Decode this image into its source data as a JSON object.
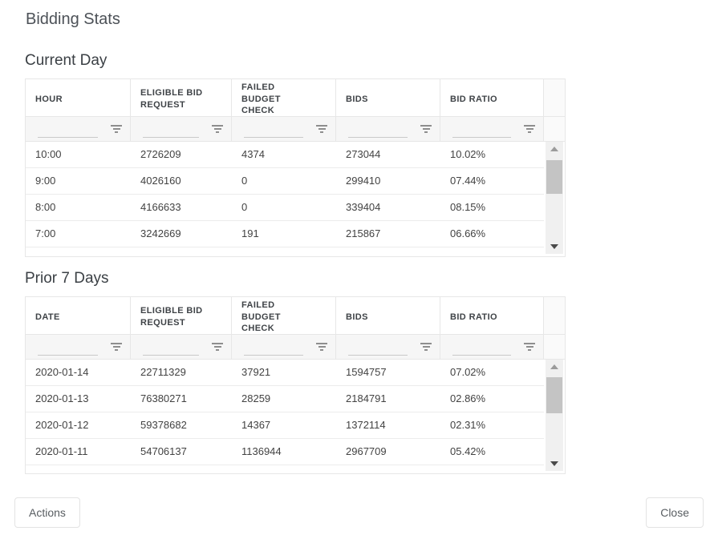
{
  "dialog": {
    "title": "Bidding Stats"
  },
  "tables": [
    {
      "id": "current-day",
      "heading": "Current Day",
      "columns": [
        "HOUR",
        "ELIGIBLE BID REQUEST",
        "FAILED BUDGET CHECK",
        "BIDS",
        "BID RATIO"
      ],
      "filter_value": "",
      "rows": [
        [
          "10:00",
          "2726209",
          "4374",
          "273044",
          "10.02%"
        ],
        [
          "9:00",
          "4026160",
          "0",
          "299410",
          "07.44%"
        ],
        [
          "8:00",
          "4166633",
          "0",
          "339404",
          "08.15%"
        ],
        [
          "7:00",
          "3242669",
          "191",
          "215867",
          "06.66%"
        ]
      ]
    },
    {
      "id": "prior-7-days",
      "heading": "Prior 7 Days",
      "columns": [
        "DATE",
        "ELIGIBLE BID REQUEST",
        "FAILED BUDGET CHECK",
        "BIDS",
        "BID RATIO"
      ],
      "filter_value": "",
      "rows": [
        [
          "2020-01-14",
          "22711329",
          "37921",
          "1594757",
          "07.02%"
        ],
        [
          "2020-01-13",
          "76380271",
          "28259",
          "2184791",
          "02.86%"
        ],
        [
          "2020-01-12",
          "59378682",
          "14367",
          "1372114",
          "02.31%"
        ],
        [
          "2020-01-11",
          "54706137",
          "1136944",
          "2967709",
          "05.42%"
        ]
      ]
    }
  ],
  "footer": {
    "actions_label": "Actions",
    "close_label": "Close"
  },
  "icons": {
    "filter": "filter-funnel-icon",
    "scroll_up": "scroll-up-icon",
    "scroll_down": "scroll-down-icon"
  },
  "colors": {
    "title_text": "#4c5157",
    "heading_text": "#3b4045",
    "header_text": "#3f4347",
    "cell_text": "#424242",
    "grid_border": "#e7e7e7",
    "filter_row_bg": "#f6f6f6",
    "scroll_track": "#f0f0f0",
    "scroll_thumb": "#c4c4c4"
  }
}
